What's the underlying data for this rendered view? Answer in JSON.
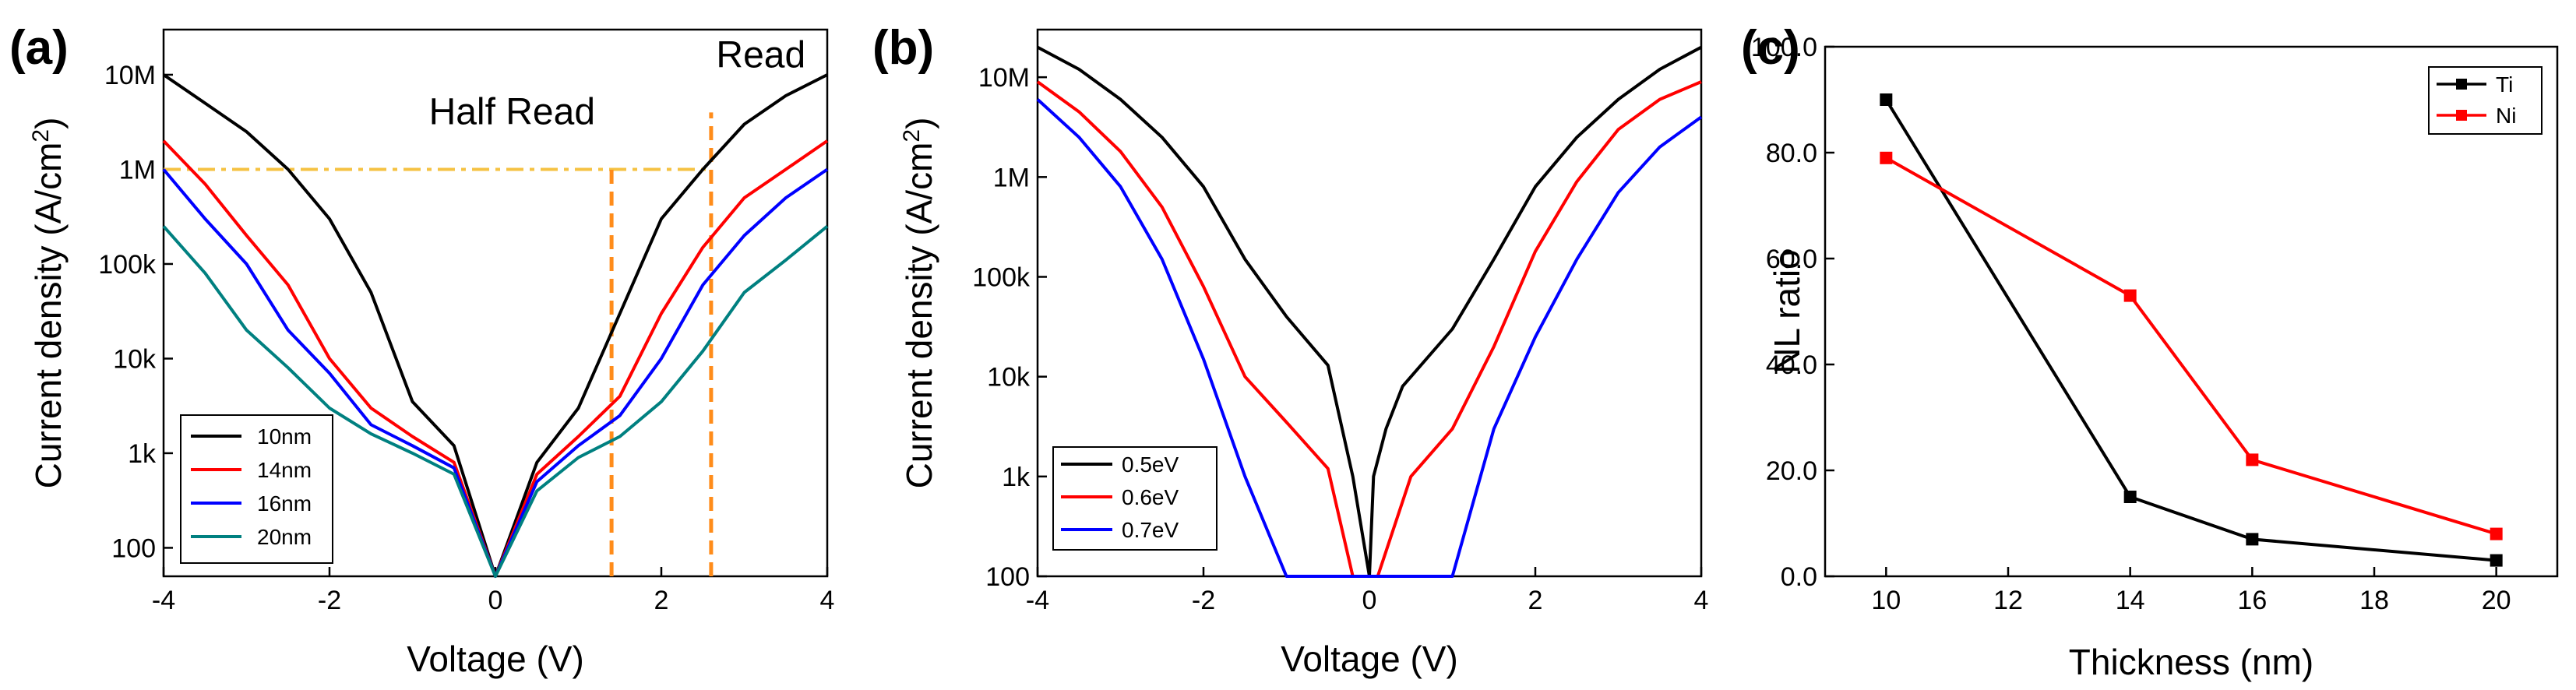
{
  "chart_data": [
    {
      "panel_label": "(a)",
      "type": "line",
      "xlabel": "Voltage (V)",
      "ylabel": "Current density (A/cm",
      "ylabel_sup": "2",
      "ylabel_close": ")",
      "xscale": "linear",
      "yscale": "log",
      "xlim": [
        -4,
        4
      ],
      "ylim": [
        50,
        30000000
      ],
      "xticks": [
        -4,
        -2,
        0,
        2,
        4
      ],
      "xtick_labels": [
        "-4",
        "-2",
        "0",
        "2",
        "4"
      ],
      "yticks": [
        100,
        1000,
        10000,
        100000,
        1000000,
        10000000
      ],
      "ytick_labels": [
        "100",
        "1k",
        "10k",
        "100k",
        "1M",
        "10M"
      ],
      "legend_position": "bottom-left",
      "series": [
        {
          "name": "10nm",
          "color": "#000000",
          "x": [
            -4,
            -3.5,
            -3,
            -2.5,
            -2,
            -1.5,
            -1,
            -0.5,
            0,
            0.5,
            1,
            1.5,
            2,
            2.5,
            3,
            3.5,
            4
          ],
          "y": [
            10000000,
            5000000,
            2500000,
            1000000,
            300000,
            50000,
            3500,
            1200,
            50,
            800,
            3000,
            30000,
            300000,
            1000000,
            3000000,
            6000000,
            10000000
          ]
        },
        {
          "name": "14nm",
          "color": "#ff0000",
          "x": [
            -4,
            -3.5,
            -3,
            -2.5,
            -2,
            -1.5,
            -1,
            -0.5,
            0,
            0.5,
            1,
            1.5,
            2,
            2.5,
            3,
            3.5,
            4
          ],
          "y": [
            2000000,
            700000,
            200000,
            60000,
            10000,
            3000,
            1500,
            800,
            50,
            600,
            1500,
            4000,
            30000,
            150000,
            500000,
            1000000,
            2000000
          ]
        },
        {
          "name": "16nm",
          "color": "#0000ff",
          "x": [
            -4,
            -3.5,
            -3,
            -2.5,
            -2,
            -1.5,
            -1,
            -0.5,
            0,
            0.5,
            1,
            1.5,
            2,
            2.5,
            3,
            3.5,
            4
          ],
          "y": [
            1000000,
            300000,
            100000,
            20000,
            7000,
            2000,
            1200,
            700,
            50,
            500,
            1200,
            2500,
            10000,
            60000,
            200000,
            500000,
            1000000
          ]
        },
        {
          "name": "20nm",
          "color": "#008080",
          "x": [
            -4,
            -3.5,
            -3,
            -2.5,
            -2,
            -1.5,
            -1,
            -0.5,
            0,
            0.5,
            1,
            1.5,
            2,
            2.5,
            3,
            3.5,
            4
          ],
          "y": [
            250000,
            80000,
            20000,
            8000,
            3000,
            1600,
            1000,
            600,
            50,
            400,
            900,
            1500,
            3500,
            12000,
            50000,
            110000,
            250000
          ]
        }
      ],
      "annotations": [
        {
          "text": "Read",
          "x": 3.2,
          "y": 12000000
        },
        {
          "text": "Half Read",
          "x": 0.2,
          "y": 3000000
        }
      ],
      "guide_lines": {
        "color": "#f5c242",
        "horizontal": {
          "y": 1000000,
          "x_from": -4,
          "x_to": 2.6
        },
        "vertical_color": "#ff8c1a",
        "verticals": [
          {
            "x": 1.4,
            "y_from": 50,
            "y_to": 1000000
          },
          {
            "x": 2.6,
            "y_from": 50,
            "y_to": 4000000
          }
        ]
      }
    },
    {
      "panel_label": "(b)",
      "type": "line",
      "xlabel": "Voltage (V)",
      "ylabel": "Current density (A/cm",
      "ylabel_sup": "2",
      "ylabel_close": ")",
      "xscale": "linear",
      "yscale": "log",
      "xlim": [
        -4,
        4
      ],
      "ylim": [
        100,
        30000000
      ],
      "xticks": [
        -4,
        -2,
        0,
        2,
        4
      ],
      "xtick_labels": [
        "-4",
        "-2",
        "0",
        "2",
        "4"
      ],
      "yticks": [
        100,
        1000,
        10000,
        100000,
        1000000,
        10000000
      ],
      "ytick_labels": [
        "100",
        "1k",
        "10k",
        "100k",
        "1M",
        "10M"
      ],
      "legend_position": "bottom-left",
      "series": [
        {
          "name": "0.5eV",
          "color": "#000000",
          "x": [
            -4,
            -3.5,
            -3,
            -2.5,
            -2,
            -1.5,
            -1,
            -0.5,
            -0.2,
            0,
            0.05,
            0.2,
            0.4,
            1,
            1.5,
            2,
            2.5,
            3,
            3.5,
            4
          ],
          "y": [
            20000000,
            12000000,
            6000000,
            2500000,
            800000,
            150000,
            40000,
            13000,
            1000,
            100,
            1000,
            3000,
            8000,
            30000,
            150000,
            800000,
            2500000,
            6000000,
            12000000,
            20000000
          ]
        },
        {
          "name": "0.6eV",
          "color": "#ff0000",
          "x": [
            -4,
            -3.5,
            -3,
            -2.5,
            -2,
            -1.5,
            -1,
            -0.5,
            -0.2,
            0.1,
            0.5,
            1,
            1.5,
            2,
            2.5,
            3,
            3.5,
            4
          ],
          "y": [
            9000000,
            4500000,
            1800000,
            500000,
            80000,
            10000,
            3500,
            1200,
            100,
            100,
            1000,
            3000,
            20000,
            180000,
            900000,
            3000000,
            6000000,
            9000000
          ]
        },
        {
          "name": "0.7eV",
          "color": "#0000ff",
          "x": [
            -4,
            -3.5,
            -3,
            -2.5,
            -2,
            -1.5,
            -1,
            1,
            1.5,
            2,
            2.5,
            3,
            3.5,
            4
          ],
          "y": [
            6000000,
            2500000,
            800000,
            150000,
            15000,
            1000,
            100,
            100,
            3000,
            25000,
            150000,
            700000,
            2000000,
            4000000
          ]
        }
      ]
    },
    {
      "panel_label": "(c)",
      "type": "line",
      "xlabel": "Thickness (nm)",
      "ylabel": "NL ratio",
      "xlim": [
        9,
        21
      ],
      "ylim": [
        0,
        100
      ],
      "xticks": [
        10,
        12,
        14,
        16,
        18,
        20
      ],
      "xtick_labels": [
        "10",
        "12",
        "14",
        "16",
        "18",
        "20"
      ],
      "yticks": [
        0,
        20,
        40,
        60,
        80,
        100
      ],
      "ytick_labels": [
        "0.0",
        "20.0",
        "40.0",
        "60.0",
        "80.0",
        "100.0"
      ],
      "legend_position": "top-right",
      "marker": "square",
      "series": [
        {
          "name": "Ti",
          "color": "#000000",
          "x": [
            10,
            14,
            16,
            20
          ],
          "y": [
            90,
            15,
            7,
            3
          ]
        },
        {
          "name": "Ni",
          "color": "#ff0000",
          "x": [
            10,
            14,
            16,
            20
          ],
          "y": [
            79,
            53,
            22,
            8
          ]
        }
      ]
    }
  ]
}
